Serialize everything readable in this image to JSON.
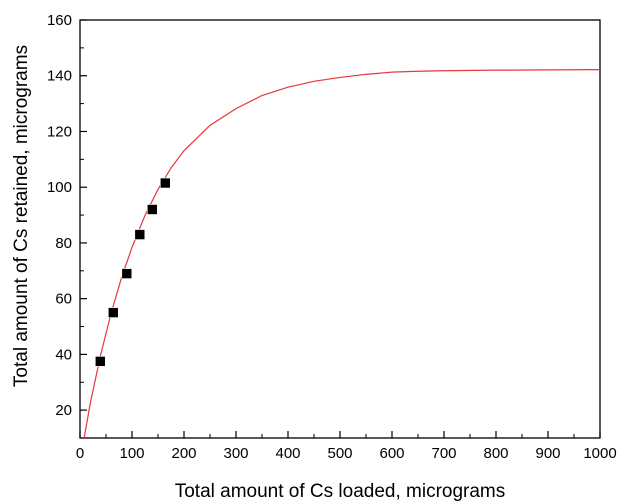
{
  "chart_data": {
    "type": "scatter",
    "title": "",
    "xlabel": "Total amount of Cs loaded, micrograms",
    "ylabel": "Total amount of Cs retained, micrograms",
    "xlim": [
      0,
      1000
    ],
    "ylim": [
      10,
      160
    ],
    "x_ticks": [
      0,
      100,
      200,
      300,
      400,
      500,
      600,
      700,
      800,
      900,
      1000
    ],
    "y_ticks": [
      20,
      40,
      60,
      80,
      100,
      120,
      140,
      160
    ],
    "grid": false,
    "legend": "none",
    "series": [
      {
        "kind": "points",
        "marker": "square",
        "color": "#000000",
        "x": [
          39,
          64,
          90,
          115,
          139,
          164
        ],
        "y": [
          37.5,
          55,
          69,
          83,
          92,
          101.5
        ]
      },
      {
        "kind": "fit-line",
        "color": "#e8363a",
        "x": [
          8,
          20,
          40,
          60,
          80,
          100,
          125,
          150,
          175,
          200,
          250,
          300,
          350,
          400,
          450,
          500,
          550,
          600,
          650,
          700,
          800,
          900,
          1000
        ],
        "y": [
          10,
          22.7,
          40.1,
          54.9,
          67.6,
          78.4,
          89.9,
          99.2,
          106.9,
          113.1,
          122.2,
          128.2,
          132.9,
          135.9,
          138,
          139.4,
          140.5,
          141.3,
          141.6,
          141.8,
          142,
          142.1,
          142.2
        ]
      }
    ]
  }
}
